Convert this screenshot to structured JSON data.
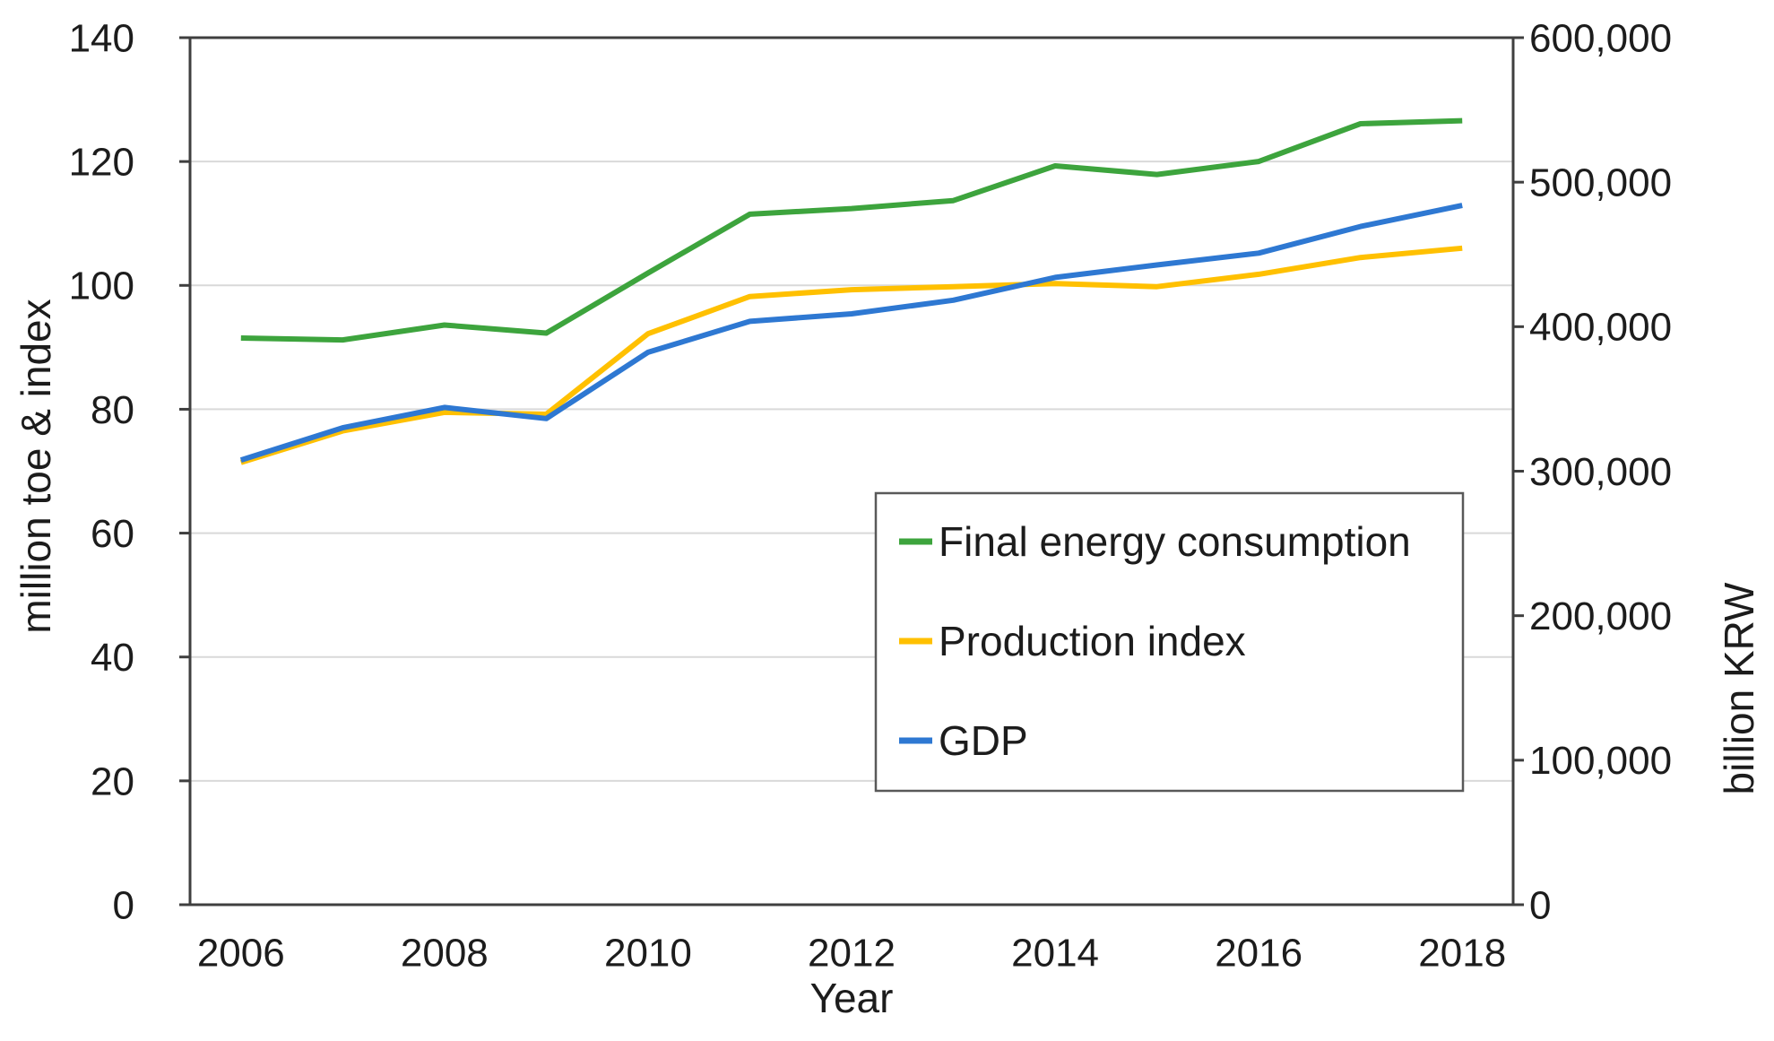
{
  "figure": {
    "background": "#ffffff",
    "plot_border_color": "#3f3f3f",
    "gridline_color": "#d9d9d9",
    "tick_color": "#3f3f3f",
    "legend_border_color": "#595959",
    "legend_background": "#ffffff",
    "text_color": "#1c1c1c"
  },
  "chart_data": {
    "type": "line",
    "title": "",
    "xlabel": "Year",
    "x": [
      2006,
      2007,
      2008,
      2009,
      2010,
      2011,
      2012,
      2013,
      2014,
      2015,
      2016,
      2017,
      2018
    ],
    "x_tick_years": [
      2006,
      2008,
      2010,
      2012,
      2014,
      2016,
      2018
    ],
    "x_tick_labels": [
      "2006",
      "2008",
      "2010",
      "2012",
      "2014",
      "2016",
      "2018"
    ],
    "grid": "horizontal-only",
    "legend_position": "center-right-box",
    "left_axis": {
      "label": "million toe & index",
      "lim": [
        0,
        140
      ],
      "ticks": [
        0,
        20,
        40,
        60,
        80,
        100,
        120,
        140
      ],
      "tick_labels": [
        "0",
        "20",
        "40",
        "60",
        "80",
        "100",
        "120",
        "140"
      ]
    },
    "right_axis": {
      "label": "billion KRW",
      "lim": [
        0,
        600000
      ],
      "ticks": [
        0,
        100000,
        200000,
        300000,
        400000,
        500000,
        600000
      ],
      "tick_labels": [
        "0",
        "100,000",
        "200,000",
        "300,000",
        "400,000",
        "500,000",
        "600,000"
      ]
    },
    "series": [
      {
        "name": "Final energy consumption",
        "axis": "left",
        "color": "#3da43d",
        "values": [
          91.5,
          91.2,
          93.6,
          92.3,
          102.0,
          111.5,
          112.4,
          113.7,
          119.3,
          117.9,
          120.0,
          126.1,
          126.6
        ]
      },
      {
        "name": "Production index",
        "axis": "left",
        "color": "#ffc000",
        "values": [
          71.4,
          76.5,
          79.5,
          79.2,
          92.2,
          98.2,
          99.3,
          99.8,
          100.3,
          99.8,
          101.8,
          104.5,
          106.0
        ]
      },
      {
        "name": "GDP",
        "axis": "right",
        "color": "#2e78d2",
        "values": [
          307700,
          330000,
          344100,
          336400,
          382300,
          403700,
          408900,
          418300,
          434100,
          442700,
          450900,
          469300,
          483900
        ]
      }
    ]
  }
}
